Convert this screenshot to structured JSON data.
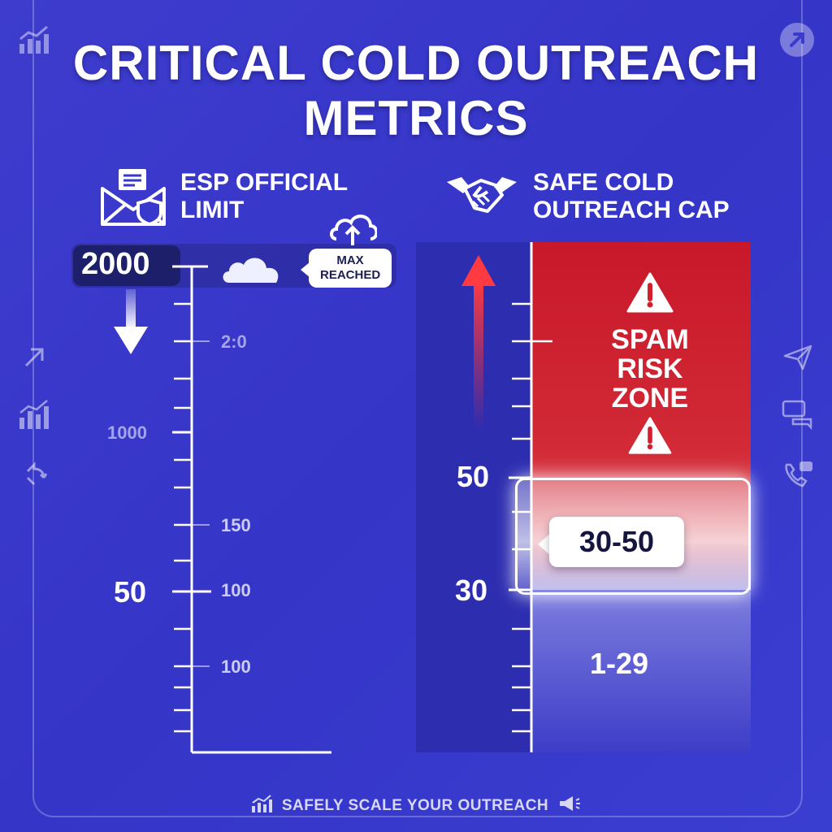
{
  "title": "CRITICAL COLD OUTREACH METRICS",
  "left_panel": {
    "heading": "ESP OFFICIAL LIMIT",
    "icon": "envelope-shield-icon",
    "max_value": "2000",
    "max_callout": "MAX REACHED",
    "cloud_icon": "cloud-icon",
    "arrow_icon": "arrow-down-icon",
    "scale_labels": {
      "upper": "2:0",
      "mid_left": "1000",
      "mid_right": "150",
      "marker": "50",
      "marker_right": "100",
      "lower": "100"
    }
  },
  "right_panel": {
    "heading": "SAFE COLD OUTREACH CAP",
    "icon": "handshake-icon",
    "spam_zone": "SPAM RISK ZONE",
    "warning_icon": "warning-icon",
    "upper_value": "50",
    "lower_value": "30",
    "safe_range": "30-50",
    "low_range": "1-29",
    "arrow_icon": "arrow-up-icon"
  },
  "side_icons": {
    "top_left": "growth-chart-icon",
    "top_right": "expand-arrow-icon",
    "left": [
      "arrow-up-right-icon",
      "bar-chart-icon",
      "refresh-arrows-icon"
    ],
    "right": [
      "paper-plane-icon",
      "chat-bubbles-icon",
      "phone-chat-icon"
    ]
  },
  "footer": "SAFELY SCALE YOUR OUTREACH",
  "colors": {
    "background": "#3838cc",
    "danger": "#d41e2e",
    "panel_dark": "#2a2aa8",
    "text": "#ffffff"
  }
}
